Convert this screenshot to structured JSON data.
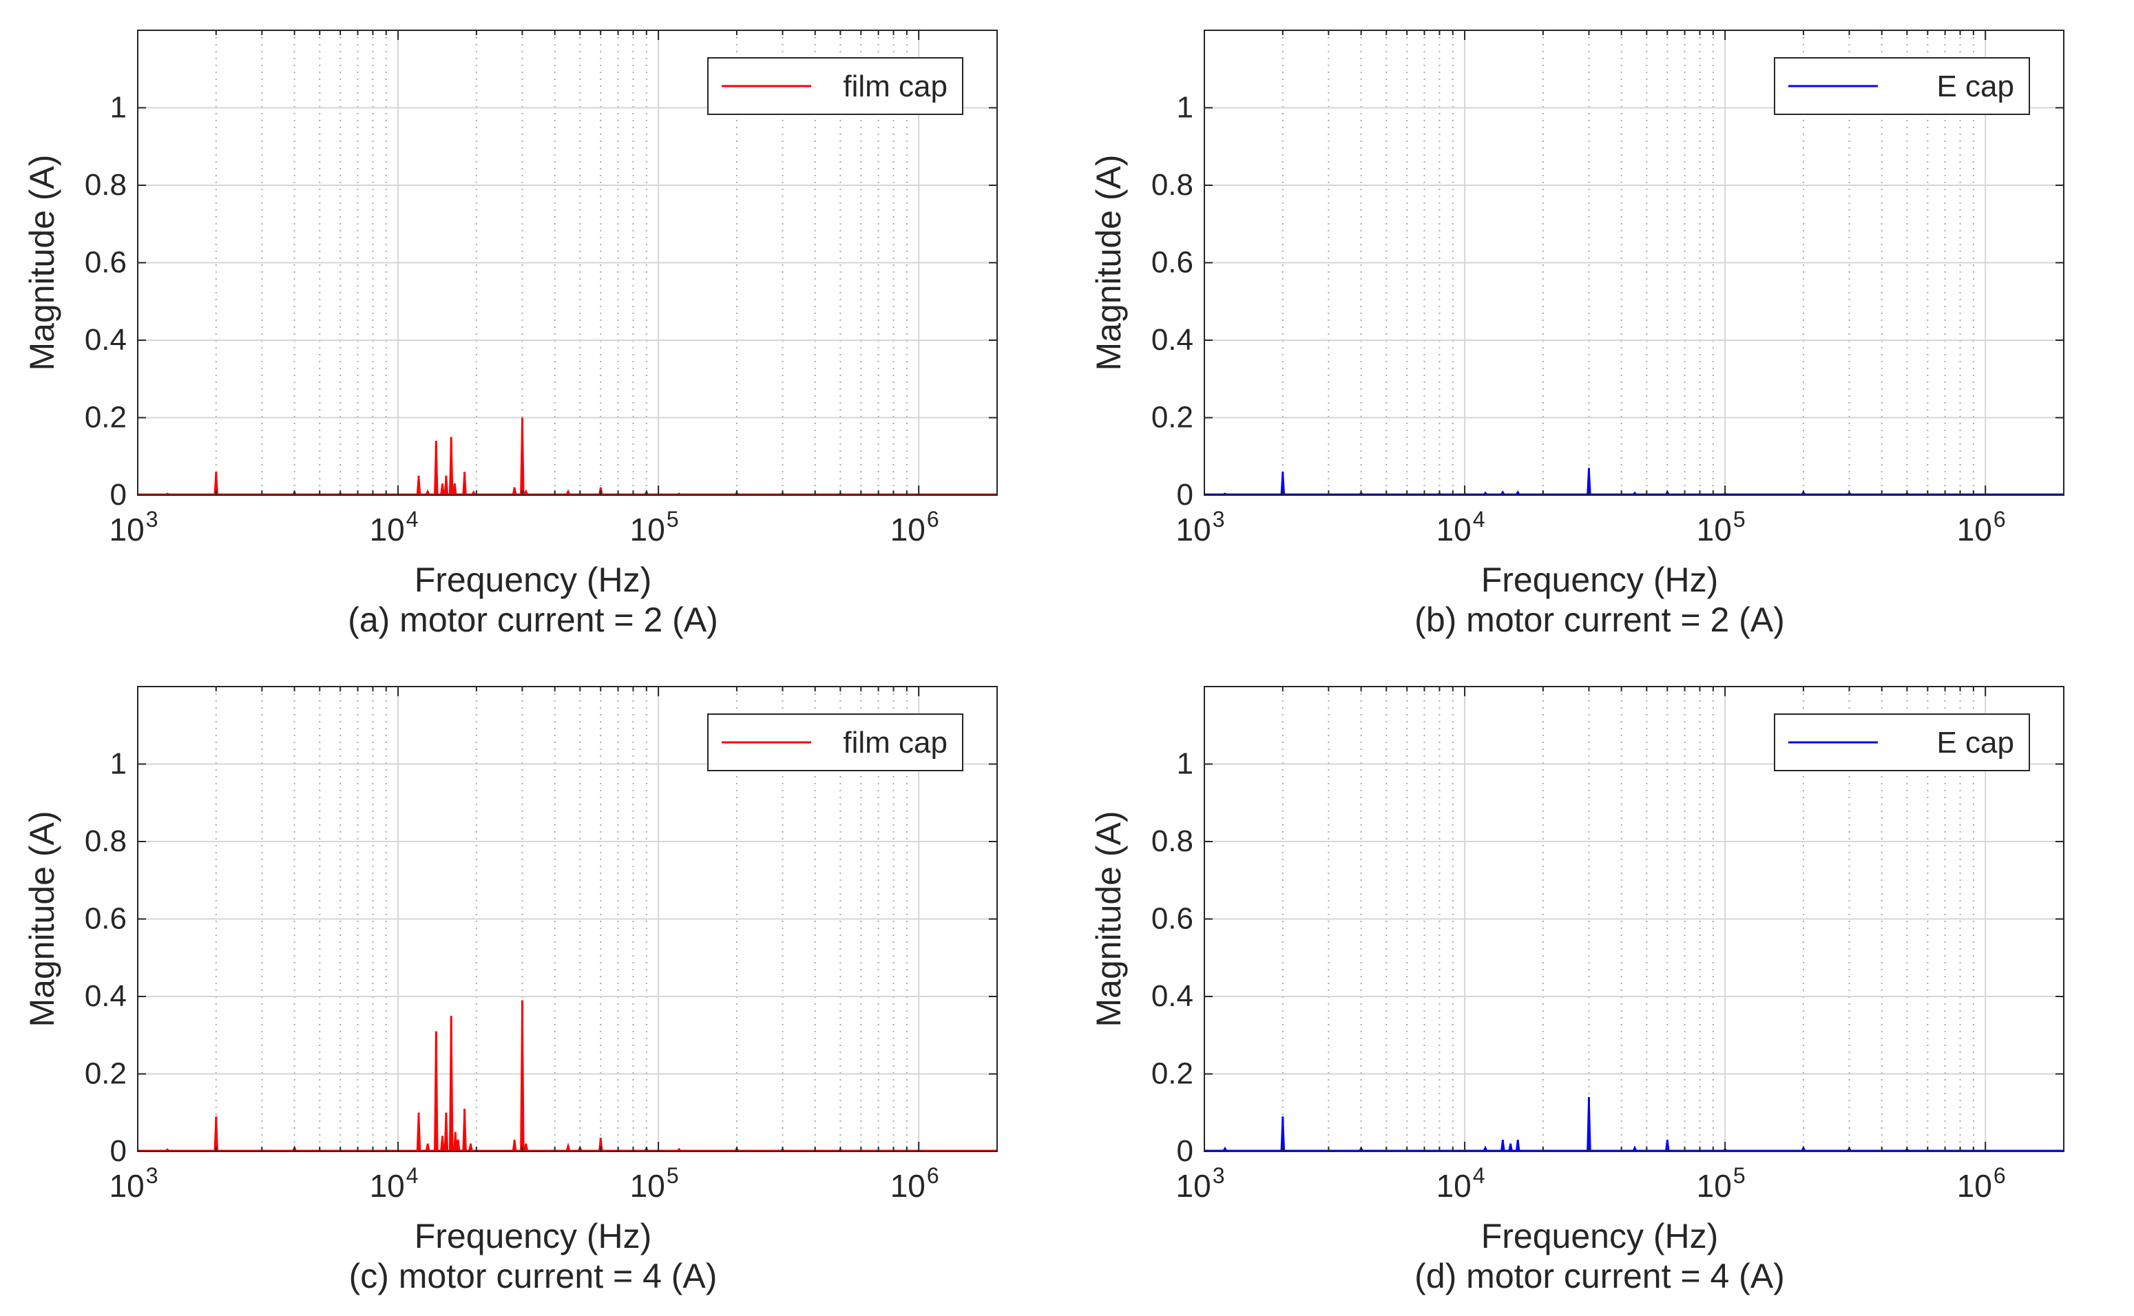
{
  "chart_data": [
    {
      "type": "line",
      "panel_id": "a",
      "caption": "(a) motor current = 2 (A)",
      "xlabel": "Frequency (Hz)",
      "ylabel": "Magnitude (A)",
      "xscale": "log",
      "xlim": [
        1000,
        2000000
      ],
      "ylim": [
        0,
        1.2
      ],
      "yticks": [
        0,
        0.2,
        0.4,
        0.6,
        0.8,
        1
      ],
      "ytick_labels": [
        "0",
        "0.2",
        "0.4",
        "0.6",
        "0.8",
        "1"
      ],
      "xtick_exponents": [
        "3",
        "4",
        "5",
        "6"
      ],
      "xtick_values": [
        1000,
        10000,
        100000,
        1000000
      ],
      "grid": true,
      "legend": "top-right",
      "series": [
        {
          "name": "film cap",
          "color": "#ff0000",
          "peaks": [
            [
              1300,
              0.004
            ],
            [
              2000,
              0.06
            ],
            [
              4000,
              0.008
            ],
            [
              6000,
              0.005
            ],
            [
              12000,
              0.05
            ],
            [
              13000,
              0.01
            ],
            [
              14000,
              0.14
            ],
            [
              14800,
              0.03
            ],
            [
              15300,
              0.05
            ],
            [
              16000,
              0.15
            ],
            [
              16500,
              0.03
            ],
            [
              18000,
              0.06
            ],
            [
              19500,
              0.008
            ],
            [
              28000,
              0.02
            ],
            [
              30000,
              0.2
            ],
            [
              31000,
              0.01
            ],
            [
              45000,
              0.01
            ],
            [
              60000,
              0.02
            ],
            [
              90000,
              0.008
            ],
            [
              120000,
              0.004
            ],
            [
              200000,
              0.006
            ],
            [
              300000,
              0.005
            ],
            [
              500000,
              0.004
            ]
          ]
        }
      ]
    },
    {
      "type": "line",
      "panel_id": "b",
      "caption": "(b) motor current = 2 (A)",
      "xlabel": "Frequency (Hz)",
      "ylabel": "Magnitude (A)",
      "xscale": "log",
      "xlim": [
        1000,
        2000000
      ],
      "ylim": [
        0,
        1.2
      ],
      "yticks": [
        0,
        0.2,
        0.4,
        0.6,
        0.8,
        1
      ],
      "ytick_labels": [
        "0",
        "0.2",
        "0.4",
        "0.6",
        "0.8",
        "1"
      ],
      "xtick_exponents": [
        "3",
        "4",
        "5",
        "6"
      ],
      "xtick_values": [
        1000,
        10000,
        100000,
        1000000
      ],
      "grid": true,
      "legend": "top-right",
      "series": [
        {
          "name": "E cap",
          "color": "#0000ff",
          "peaks": [
            [
              1200,
              0.004
            ],
            [
              2000,
              0.06
            ],
            [
              4000,
              0.006
            ],
            [
              8000,
              0.004
            ],
            [
              12000,
              0.006
            ],
            [
              14000,
              0.008
            ],
            [
              16000,
              0.008
            ],
            [
              30000,
              0.07
            ],
            [
              45000,
              0.006
            ],
            [
              60000,
              0.008
            ],
            [
              100000,
              0.004
            ],
            [
              200000,
              0.008
            ],
            [
              300000,
              0.006
            ],
            [
              500000,
              0.005
            ]
          ]
        }
      ]
    },
    {
      "type": "line",
      "panel_id": "c",
      "caption": "(c) motor current = 4 (A)",
      "xlabel": "Frequency (Hz)",
      "ylabel": "Magnitude (A)",
      "xscale": "log",
      "xlim": [
        1000,
        2000000
      ],
      "ylim": [
        0,
        1.2
      ],
      "yticks": [
        0,
        0.2,
        0.4,
        0.6,
        0.8,
        1
      ],
      "ytick_labels": [
        "0",
        "0.2",
        "0.4",
        "0.6",
        "0.8",
        "1"
      ],
      "xtick_exponents": [
        "3",
        "4",
        "5",
        "6"
      ],
      "xtick_values": [
        1000,
        10000,
        100000,
        1000000
      ],
      "grid": true,
      "legend": "top-right",
      "series": [
        {
          "name": "film cap",
          "color": "#ff0000",
          "peaks": [
            [
              1300,
              0.005
            ],
            [
              2000,
              0.09
            ],
            [
              4000,
              0.01
            ],
            [
              12000,
              0.1
            ],
            [
              13000,
              0.02
            ],
            [
              14000,
              0.31
            ],
            [
              14800,
              0.04
            ],
            [
              15300,
              0.1
            ],
            [
              16000,
              0.35
            ],
            [
              16600,
              0.05
            ],
            [
              17000,
              0.03
            ],
            [
              18000,
              0.11
            ],
            [
              19000,
              0.02
            ],
            [
              28000,
              0.03
            ],
            [
              30000,
              0.39
            ],
            [
              31000,
              0.02
            ],
            [
              45000,
              0.015
            ],
            [
              50000,
              0.01
            ],
            [
              60000,
              0.035
            ],
            [
              90000,
              0.008
            ],
            [
              120000,
              0.006
            ],
            [
              200000,
              0.008
            ],
            [
              300000,
              0.006
            ],
            [
              500000,
              0.005
            ]
          ]
        }
      ]
    },
    {
      "type": "line",
      "panel_id": "d",
      "caption": "(d) motor current = 4 (A)",
      "xlabel": "Frequency (Hz)",
      "ylabel": "Magnitude (A)",
      "xscale": "log",
      "xlim": [
        1000,
        2000000
      ],
      "ylim": [
        0,
        1.2
      ],
      "yticks": [
        0,
        0.2,
        0.4,
        0.6,
        0.8,
        1
      ],
      "ytick_labels": [
        "0",
        "0.2",
        "0.4",
        "0.6",
        "0.8",
        "1"
      ],
      "xtick_exponents": [
        "3",
        "4",
        "5",
        "6"
      ],
      "xtick_values": [
        1000,
        10000,
        100000,
        1000000
      ],
      "grid": true,
      "legend": "top-right",
      "series": [
        {
          "name": "E cap",
          "color": "#0000ff",
          "peaks": [
            [
              1200,
              0.008
            ],
            [
              2000,
              0.09
            ],
            [
              4000,
              0.008
            ],
            [
              12000,
              0.01
            ],
            [
              14000,
              0.03
            ],
            [
              15000,
              0.02
            ],
            [
              16000,
              0.03
            ],
            [
              30000,
              0.14
            ],
            [
              45000,
              0.01
            ],
            [
              60000,
              0.03
            ],
            [
              100000,
              0.006
            ],
            [
              200000,
              0.01
            ],
            [
              300000,
              0.008
            ],
            [
              500000,
              0.006
            ]
          ]
        }
      ]
    }
  ]
}
